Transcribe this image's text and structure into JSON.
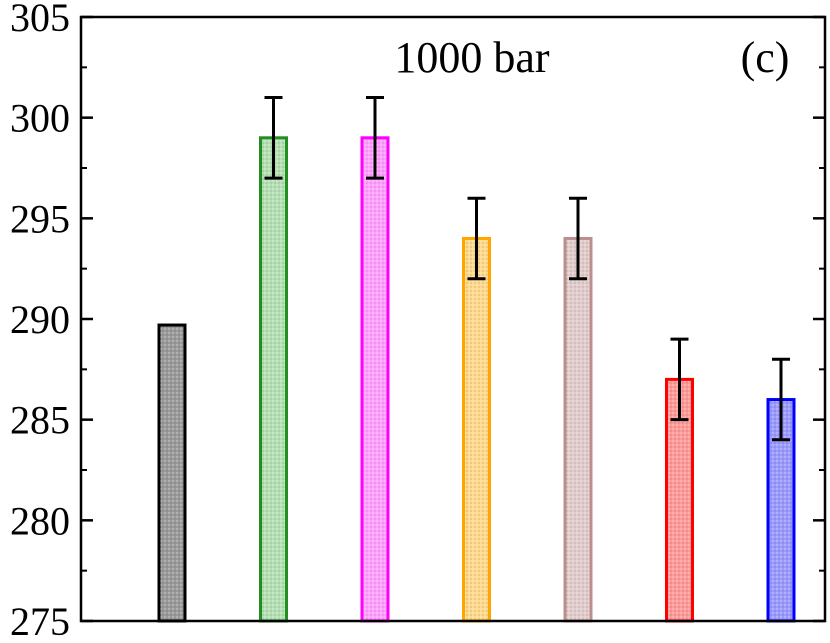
{
  "chart_data": {
    "type": "bar",
    "title": "1000 bar",
    "panel_label": "(c)",
    "xlabel": "",
    "ylabel": "",
    "ylim": [
      275,
      305
    ],
    "yticks": [
      275,
      280,
      285,
      290,
      295,
      300,
      305
    ],
    "yticks_labels": [
      "275",
      "280",
      "285",
      "290",
      "295",
      "300",
      "305"
    ],
    "grid": false,
    "legend": "none",
    "series": [
      {
        "value": 289.7,
        "error": null,
        "color": "#000000",
        "fill": "#9a9a9a"
      },
      {
        "value": 299.0,
        "error": 2.0,
        "color": "#1f8f1f",
        "fill": "#b4e0b4"
      },
      {
        "value": 299.0,
        "error": 2.0,
        "color": "#ff00ff",
        "fill": "#ffa0ff"
      },
      {
        "value": 294.0,
        "error": 2.0,
        "color": "#ffa500",
        "fill": "#ffd98c"
      },
      {
        "value": 294.0,
        "error": 2.0,
        "color": "#bc8f8f",
        "fill": "#e3cccc"
      },
      {
        "value": 287.0,
        "error": 2.0,
        "color": "#ff0000",
        "fill": "#ff9a9a"
      },
      {
        "value": 286.0,
        "error": 2.0,
        "color": "#0000ff",
        "fill": "#9a9aff"
      }
    ]
  }
}
